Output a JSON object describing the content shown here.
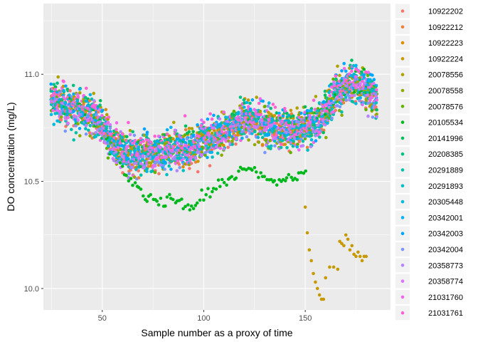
{
  "chart_data": {
    "type": "scatter",
    "xlabel": "Sample number as a proxy of time",
    "ylabel": "DO concentration (mg/L)",
    "xlim": [
      21,
      192
    ],
    "ylim": [
      9.9,
      11.33
    ],
    "x_ticks": [
      50,
      100,
      150
    ],
    "y_ticks": [
      10.0,
      10.5,
      11.0
    ],
    "y_tick_labels": [
      "10.0",
      "10.5",
      "11.0"
    ],
    "grid": true,
    "legend_position": "right",
    "series": [
      {
        "name": "10922202",
        "color": "#F8766D"
      },
      {
        "name": "10922212",
        "color": "#EC8239"
      },
      {
        "name": "10922223",
        "color": "#DB8E00"
      },
      {
        "name": "10922224",
        "color": "#C79800"
      },
      {
        "name": "20078556",
        "color": "#AEA200"
      },
      {
        "name": "20078558",
        "color": "#8FAA00"
      },
      {
        "name": "20078576",
        "color": "#64B200"
      },
      {
        "name": "20105534",
        "color": "#00B81B"
      },
      {
        "name": "20141996",
        "color": "#00BD5C"
      },
      {
        "name": "20208385",
        "color": "#00C085"
      },
      {
        "name": "20291889",
        "color": "#00C1A7"
      },
      {
        "name": "20291893",
        "color": "#00BFC4"
      },
      {
        "name": "20305448",
        "color": "#00BADE"
      },
      {
        "name": "20342001",
        "color": "#00B2F3"
      },
      {
        "name": "20342003",
        "color": "#00A6FF"
      },
      {
        "name": "20342004",
        "color": "#7C96FF"
      },
      {
        "name": "20358773",
        "color": "#B385FF"
      },
      {
        "name": "20358774",
        "color": "#D874FD"
      },
      {
        "name": "21031760",
        "color": "#EF67EB"
      },
      {
        "name": "21031761",
        "color": "#FD61D3"
      }
    ],
    "trend": {
      "x": [
        25,
        30,
        35,
        40,
        45,
        50,
        55,
        60,
        65,
        70,
        75,
        80,
        85,
        90,
        95,
        100,
        105,
        110,
        115,
        120,
        125,
        130,
        135,
        140,
        145,
        150,
        155,
        160,
        165,
        170,
        175,
        180,
        185
      ],
      "y": [
        10.88,
        10.86,
        10.84,
        10.83,
        10.81,
        10.75,
        10.68,
        10.64,
        10.62,
        10.63,
        10.63,
        10.64,
        10.65,
        10.66,
        10.66,
        10.69,
        10.71,
        10.73,
        10.75,
        10.79,
        10.79,
        10.76,
        10.75,
        10.75,
        10.74,
        10.75,
        10.76,
        10.82,
        10.92,
        10.95,
        10.96,
        10.93,
        10.88
      ]
    },
    "green_low": {
      "x": [
        60,
        65,
        70,
        75,
        80,
        85,
        90,
        95,
        100,
        105,
        110,
        115,
        120,
        125,
        130,
        135,
        140,
        145,
        150
      ],
      "y": [
        10.55,
        10.5,
        10.43,
        10.42,
        10.4,
        10.42,
        10.39,
        10.38,
        10.43,
        10.46,
        10.5,
        10.52,
        10.56,
        10.56,
        10.52,
        10.5,
        10.51,
        10.52,
        10.55
      ]
    },
    "outlier_series": {
      "name": "10922224",
      "x": [
        150,
        151,
        152,
        153,
        154,
        155,
        156,
        157,
        158,
        159,
        160,
        162,
        164,
        166,
        167,
        168,
        169,
        170,
        171,
        172,
        173,
        174,
        175,
        176,
        177,
        178,
        179,
        180
      ],
      "y": [
        10.38,
        10.26,
        10.18,
        10.13,
        10.07,
        10.03,
        10.0,
        9.97,
        9.95,
        9.95,
        10.05,
        10.1,
        10.1,
        10.09,
        10.22,
        10.21,
        10.2,
        10.25,
        10.23,
        10.18,
        10.2,
        10.16,
        10.15,
        10.17,
        10.15,
        10.13,
        10.15,
        10.15
      ]
    }
  }
}
